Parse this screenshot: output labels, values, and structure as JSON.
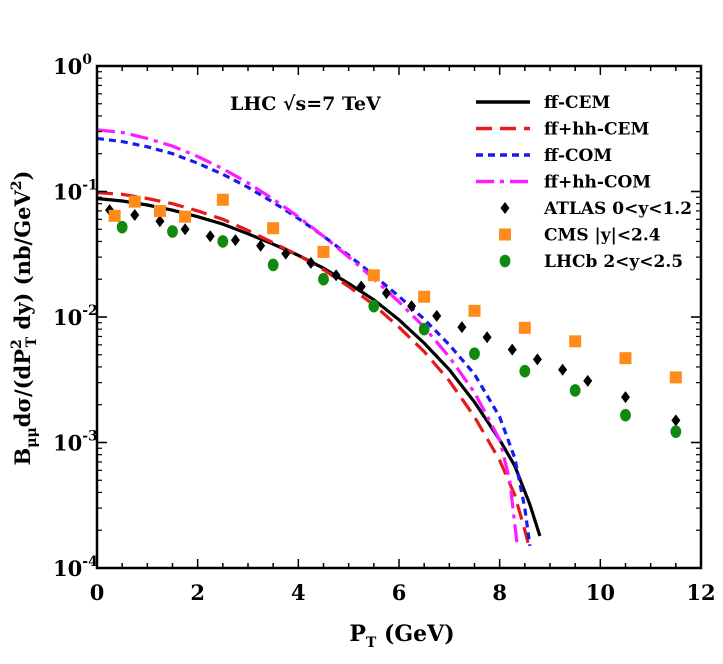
{
  "chart_data": {
    "type": "line",
    "annotation": "LHC √s=7 TeV",
    "xlabel": {
      "main": "P",
      "sub": "T",
      "rest": " (GeV)"
    },
    "ylabel": {
      "parts": [
        "B",
        "μμ",
        "dσ/(dP",
        "2",
        "T",
        " dy)  (nb/GeV",
        "2",
        ")"
      ]
    },
    "xlim": [
      0,
      12
    ],
    "ylim": [
      0.0001,
      1
    ],
    "yscale": "log",
    "x_ticks": [
      {
        "value": 0,
        "label": "0"
      },
      {
        "value": 2,
        "label": "2"
      },
      {
        "value": 4,
        "label": "4"
      },
      {
        "value": 6,
        "label": "6"
      },
      {
        "value": 8,
        "label": "8"
      },
      {
        "value": 10,
        "label": "10"
      },
      {
        "value": 12,
        "label": "12"
      }
    ],
    "y_ticks": [
      {
        "value": 1,
        "base": "10",
        "exp": "0"
      },
      {
        "value": 0.1,
        "base": "10",
        "exp": "-1"
      },
      {
        "value": 0.01,
        "base": "10",
        "exp": "-2"
      },
      {
        "value": 0.001,
        "base": "10",
        "exp": "-3"
      },
      {
        "value": 0.0001,
        "base": "10",
        "exp": "-4"
      }
    ],
    "legend_position": "top-right",
    "series": [
      {
        "name": "ff-CEM",
        "kind": "line",
        "color": "#000000",
        "dash": "",
        "x": [
          0,
          0.5,
          1,
          1.5,
          2,
          2.5,
          3,
          3.5,
          4,
          4.5,
          5,
          5.5,
          6,
          6.5,
          7,
          7.5,
          8,
          8.3,
          8.6,
          8.8
        ],
        "y": [
          0.088,
          0.084,
          0.078,
          0.071,
          0.063,
          0.055,
          0.046,
          0.038,
          0.031,
          0.0245,
          0.0185,
          0.0137,
          0.0095,
          0.0062,
          0.0038,
          0.0021,
          0.00105,
          0.00065,
          0.00032,
          0.00018
        ]
      },
      {
        "name": "ff+hh-CEM",
        "kind": "line",
        "color": "#e41a1c",
        "dash": "16,8",
        "x": [
          0,
          0.5,
          1,
          1.5,
          2,
          2.5,
          3,
          3.5,
          4,
          4.5,
          5,
          5.5,
          6,
          6.5,
          7,
          7.5,
          8,
          8.3,
          8.5,
          8.6
        ],
        "y": [
          0.098,
          0.095,
          0.088,
          0.08,
          0.07,
          0.06,
          0.049,
          0.039,
          0.031,
          0.0238,
          0.0175,
          0.0125,
          0.0083,
          0.0053,
          0.0031,
          0.0016,
          0.00072,
          0.00038,
          0.0002,
          0.00014
        ]
      },
      {
        "name": "ff-COM",
        "kind": "line",
        "color": "#1a1aee",
        "dash": "7,5",
        "x": [
          0,
          0.5,
          1,
          1.5,
          2,
          2.5,
          3,
          3.5,
          4,
          4.5,
          5,
          5.5,
          6,
          6.5,
          7,
          7.5,
          8,
          8.3,
          8.5,
          8.6
        ],
        "y": [
          0.265,
          0.25,
          0.227,
          0.2,
          0.168,
          0.137,
          0.108,
          0.082,
          0.061,
          0.044,
          0.031,
          0.0215,
          0.0146,
          0.0096,
          0.006,
          0.0035,
          0.0016,
          0.00075,
          0.0003,
          0.00015
        ]
      },
      {
        "name": "ff+hh-COM",
        "kind": "line",
        "color": "#ff1aff",
        "dash": "18,6,4,6",
        "x": [
          0,
          0.5,
          1,
          1.5,
          2,
          2.5,
          3,
          3.5,
          4,
          4.5,
          5,
          5.5,
          6,
          6.5,
          7,
          7.5,
          8,
          8.2,
          8.35
        ],
        "y": [
          0.31,
          0.295,
          0.265,
          0.23,
          0.19,
          0.152,
          0.117,
          0.087,
          0.063,
          0.044,
          0.03,
          0.0202,
          0.0132,
          0.0083,
          0.0048,
          0.0025,
          0.00105,
          0.0005,
          0.00015
        ]
      },
      {
        "name": "ATLAS 0<y<1.2",
        "kind": "marker",
        "marker": "diamond",
        "color": "#000000",
        "x": [
          0.25,
          0.75,
          1.25,
          1.75,
          2.25,
          2.75,
          3.25,
          3.75,
          4.25,
          4.75,
          5.25,
          5.75,
          6.25,
          6.75,
          7.25,
          7.75,
          8.25,
          8.75,
          9.25,
          9.75,
          10.5,
          11.5
        ],
        "y": [
          0.071,
          0.065,
          0.058,
          0.05,
          0.044,
          0.041,
          0.037,
          0.032,
          0.027,
          0.0215,
          0.0175,
          0.0155,
          0.0122,
          0.0102,
          0.0083,
          0.0069,
          0.0055,
          0.0046,
          0.0038,
          0.0031,
          0.0023,
          0.0015
        ]
      },
      {
        "name": "CMS |y|<2.4",
        "kind": "marker",
        "marker": "square",
        "color": "#ff8c1a",
        "x": [
          0.35,
          0.75,
          1.25,
          1.75,
          2.5,
          3.5,
          4.5,
          5.5,
          6.5,
          7.5,
          8.5,
          9.5,
          10.5,
          11.5
        ],
        "y": [
          0.064,
          0.083,
          0.07,
          0.063,
          0.086,
          0.051,
          0.033,
          0.0215,
          0.0145,
          0.0112,
          0.0082,
          0.0064,
          0.0047,
          0.0033
        ]
      },
      {
        "name": "LHCb 2<y<2.5",
        "kind": "marker",
        "marker": "circle",
        "color": "#0f8a0f",
        "x": [
          0.5,
          1.5,
          2.5,
          3.5,
          4.5,
          5.5,
          6.5,
          7.5,
          8.5,
          9.5,
          10.5,
          11.5
        ],
        "y": [
          0.052,
          0.048,
          0.04,
          0.026,
          0.02,
          0.0122,
          0.008,
          0.0051,
          0.0037,
          0.0026,
          0.00165,
          0.00122
        ]
      }
    ]
  }
}
